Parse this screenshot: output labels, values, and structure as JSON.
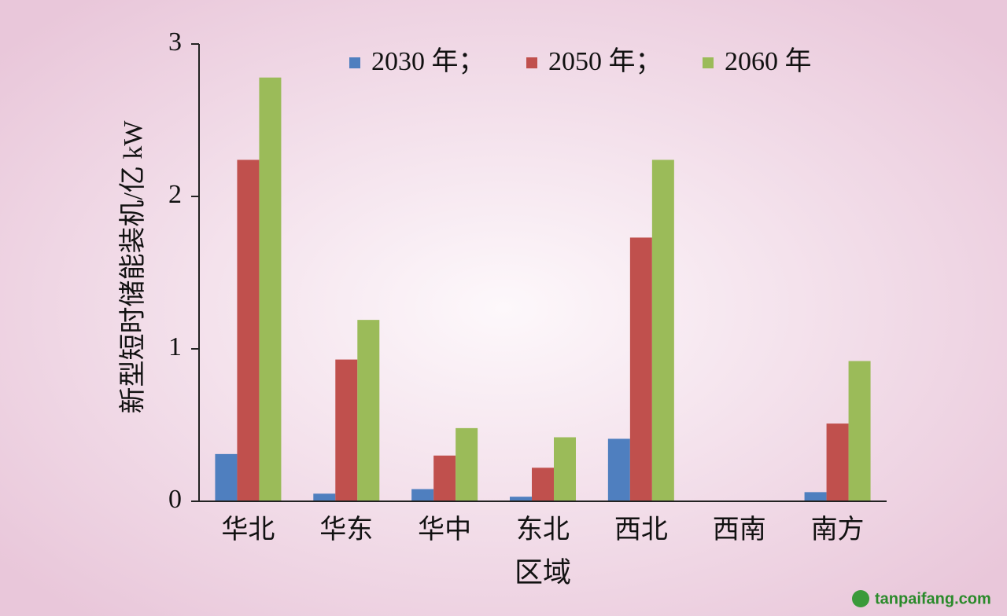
{
  "chart_data": {
    "type": "bar",
    "y_label": "新型短时储能装机/亿 kW",
    "x_label": "区域",
    "categories": [
      "华北",
      "华东",
      "华中",
      "东北",
      "西北",
      "西南",
      "南方"
    ],
    "series": [
      {
        "name": "2030 年；",
        "color": "#4f7fbf",
        "values": [
          0.31,
          0.05,
          0.08,
          0.03,
          0.41,
          0,
          0.06
        ]
      },
      {
        "name": "2050 年；",
        "color": "#c0504d",
        "values": [
          2.24,
          0.93,
          0.3,
          0.22,
          1.73,
          0,
          0.51
        ]
      },
      {
        "name": "2060 年",
        "color": "#9bbb59",
        "values": [
          2.78,
          1.19,
          0.48,
          0.42,
          2.24,
          0,
          0.92
        ]
      }
    ],
    "ylim": [
      0,
      3
    ],
    "yticks": [
      0,
      1,
      2,
      3
    ],
    "watermark": "tanpaifang.com"
  }
}
